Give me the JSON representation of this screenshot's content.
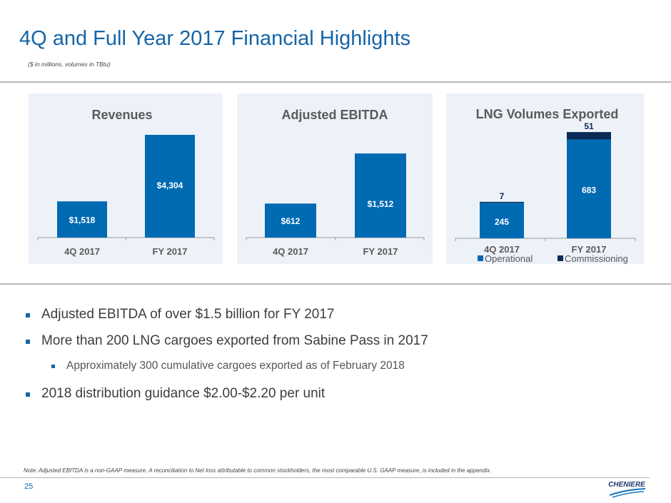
{
  "title": "4Q and Full Year 2017 Financial Highlights",
  "subtitle": "($ in millions, volumes in TBtu)",
  "chart_data": [
    {
      "type": "bar",
      "title": "Revenues",
      "categories": [
        "4Q 2017",
        "FY 2017"
      ],
      "values": [
        1518,
        4304
      ],
      "labels": [
        "$1,518",
        "$4,304"
      ],
      "ylim": [
        0,
        5080
      ],
      "color": "#006ab3"
    },
    {
      "type": "bar",
      "title": "Adjusted EBITDA",
      "categories": [
        "4Q 2017",
        "FY 2017"
      ],
      "values": [
        612,
        1512
      ],
      "labels": [
        "$612",
        "$1,512"
      ],
      "ylim": [
        0,
        2180
      ],
      "color": "#006ab3"
    },
    {
      "type": "bar",
      "stacked": true,
      "title": "LNG Volumes Exported",
      "categories": [
        "4Q 2017",
        "FY 2017"
      ],
      "series": [
        {
          "name": "Operational",
          "values": [
            245,
            683
          ],
          "color": "#006ab3"
        },
        {
          "name": "Commissioning",
          "values": [
            7,
            51
          ],
          "color": "#0b2a55"
        }
      ],
      "ylim": [
        0,
        838
      ],
      "legend": "bottom"
    }
  ],
  "bullets": [
    {
      "text": "Adjusted EBITDA of over $1.5 billion for FY 2017",
      "level": 1
    },
    {
      "text": "More than 200 LNG cargoes exported from Sabine Pass in 2017",
      "level": 1
    },
    {
      "text": "Approximately 300 cumulative cargoes exported as of February 2018",
      "level": 2
    },
    {
      "text": "2018 distribution guidance $2.00-$2.20 per unit",
      "level": 1
    }
  ],
  "note": "Note: Adjusted EBITDA is a non-GAAP measure. A reconciliation to Net loss attributable to common stockholders, the most comparable U.S. GAAP measure, is included in the appendix.",
  "page_number": "25",
  "logo_text": "CHENIERE"
}
